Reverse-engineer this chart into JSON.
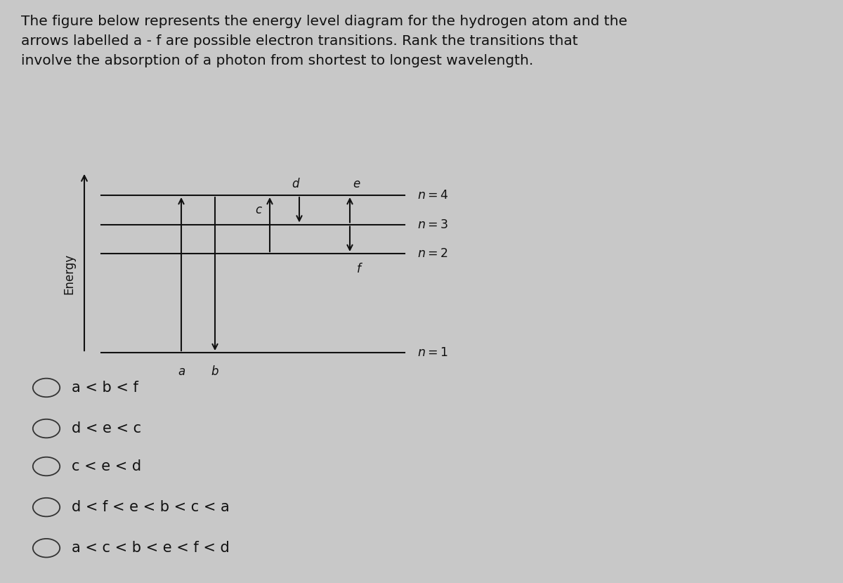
{
  "title_text": "The figure below represents the energy level diagram for the hydrogen atom and the\narrows labelled a - f are possible electron transitions. Rank the transitions that\ninvolve the absorption of a photon from shortest to longest wavelength.",
  "background_color": "#c8c8c8",
  "title_fontsize": 14.5,
  "title_color": "#111111",
  "choices": [
    "a < b < f",
    "d < e < c",
    "c < e < d",
    "d < f < e < b < c < a",
    "a < c < b < e < f < d"
  ],
  "choice_fontsize": 15,
  "choice_color": "#111111"
}
